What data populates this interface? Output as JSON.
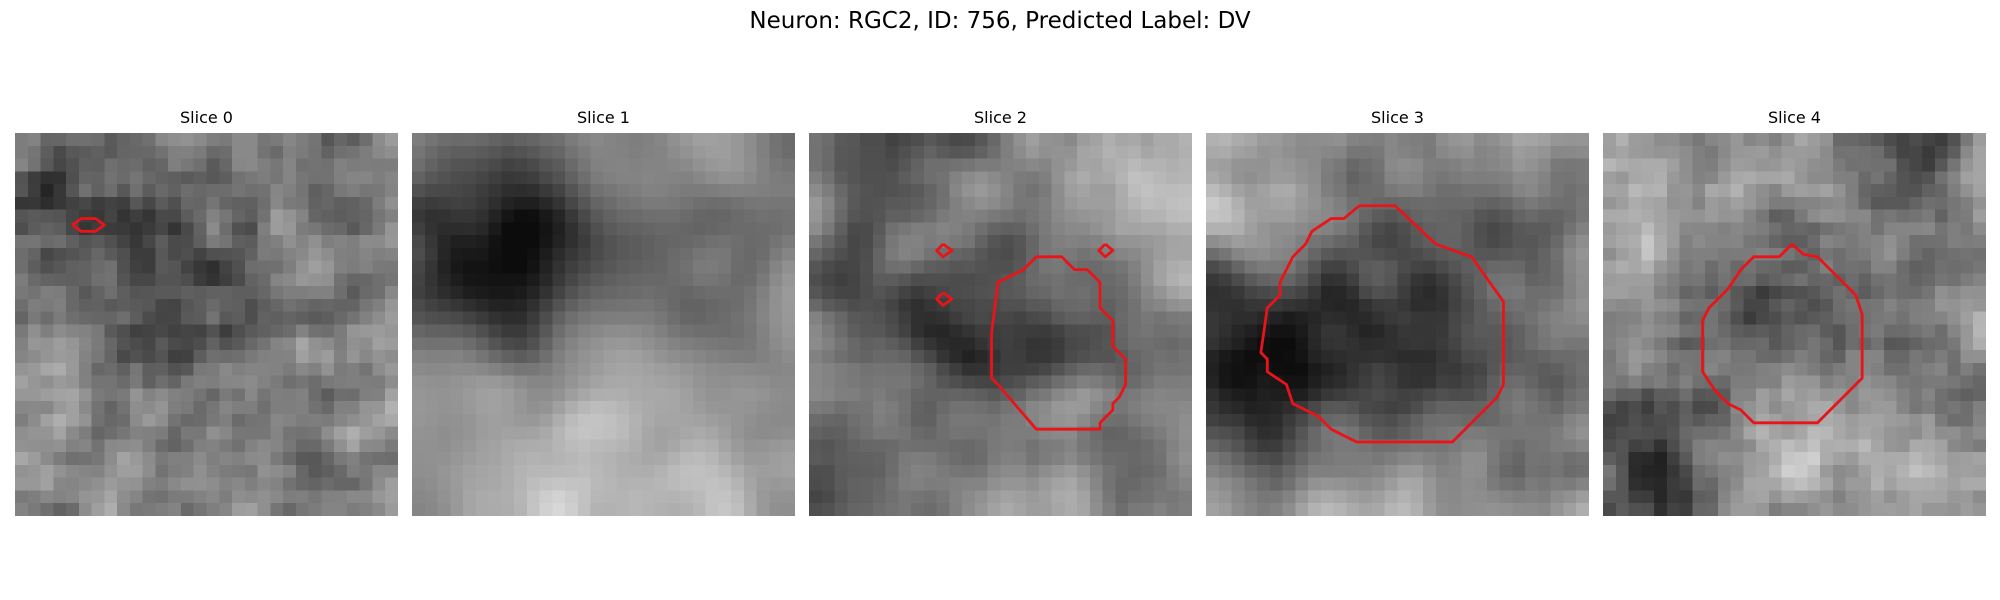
{
  "figure": {
    "suptitle": "Neuron: RGC2, ID: 756, Predicted Label: DV",
    "contour_color": "#e8141a"
  },
  "panels": [
    {
      "title": "Slice 0",
      "seed": 11,
      "base": 150,
      "noise": 95,
      "smooth": 1,
      "blobs": [
        [
          12.5,
          12,
          7.5,
          -70
        ],
        [
          7,
          8,
          4,
          -25
        ],
        [
          2,
          5,
          4,
          -40
        ],
        [
          26,
          5,
          3,
          -35
        ],
        [
          20,
          27,
          8,
          -20
        ]
      ],
      "contours": [
        [
          [
            4.5,
            7.2
          ],
          [
            5.2,
            6.7
          ],
          [
            6.3,
            6.7
          ],
          [
            7.0,
            7.2
          ],
          [
            6.3,
            7.7
          ],
          [
            5.2,
            7.7
          ],
          [
            4.5,
            7.2
          ]
        ]
      ]
    },
    {
      "title": "Slice 1",
      "seed": 23,
      "base": 160,
      "noise": 55,
      "smooth": 3,
      "blobs": [
        [
          7.5,
          11,
          7,
          -120
        ],
        [
          8,
          6,
          5,
          -60
        ],
        [
          12,
          23,
          8,
          40
        ],
        [
          25,
          10,
          5,
          -40
        ],
        [
          27,
          24,
          6,
          -25
        ],
        [
          11,
          2,
          4,
          20
        ]
      ],
      "contours": []
    },
    {
      "title": "Slice 2",
      "seed": 37,
      "base": 165,
      "noise": 70,
      "smooth": 2,
      "blobs": [
        [
          15,
          14.5,
          8,
          -115
        ],
        [
          3,
          11.5,
          4,
          -70
        ],
        [
          8.5,
          0.5,
          4.5,
          -85
        ],
        [
          1.5,
          27,
          3.5,
          -70
        ],
        [
          25,
          26,
          4,
          -45
        ],
        [
          10,
          7,
          4,
          55
        ],
        [
          23,
          6,
          4,
          45
        ],
        [
          20,
          21,
          3,
          30
        ]
      ],
      "contours": [
        [
          [
            10.5,
            8.7
          ],
          [
            11.2,
            9.2
          ],
          [
            10.5,
            9.7
          ],
          [
            10.0,
            9.2
          ],
          [
            10.5,
            8.7
          ]
        ],
        [
          [
            10.5,
            12.5
          ],
          [
            11.2,
            13.0
          ],
          [
            10.5,
            13.5
          ],
          [
            10.0,
            13.0
          ],
          [
            10.5,
            12.5
          ]
        ],
        [
          [
            23.2,
            8.7
          ],
          [
            23.8,
            9.2
          ],
          [
            23.2,
            9.7
          ],
          [
            22.7,
            9.2
          ],
          [
            23.2,
            8.7
          ]
        ],
        [
          [
            17.8,
            9.7
          ],
          [
            19.8,
            9.7
          ],
          [
            20.8,
            10.7
          ],
          [
            21.8,
            10.7
          ],
          [
            22.8,
            11.7
          ],
          [
            22.8,
            13.7
          ],
          [
            23.8,
            14.7
          ],
          [
            23.8,
            16.7
          ],
          [
            24.8,
            17.7
          ],
          [
            24.8,
            19.7
          ],
          [
            24.3,
            20.7
          ],
          [
            23.8,
            21.2
          ],
          [
            23.8,
            21.7
          ],
          [
            22.8,
            22.7
          ],
          [
            22.8,
            23.2
          ],
          [
            17.8,
            23.2
          ],
          [
            14.8,
            19.7
          ],
          [
            14.3,
            19.2
          ],
          [
            14.3,
            15.7
          ],
          [
            14.8,
            11.7
          ],
          [
            16.8,
            10.7
          ],
          [
            17.8,
            9.7
          ]
        ]
      ]
    },
    {
      "title": "Slice 3",
      "seed": 51,
      "base": 170,
      "noise": 65,
      "smooth": 2,
      "blobs": [
        [
          14,
          15.5,
          9.5,
          -115
        ],
        [
          1.5,
          19,
          6,
          -100
        ],
        [
          4,
          7.5,
          4.5,
          55
        ],
        [
          29,
          23,
          6,
          -40
        ],
        [
          26,
          5,
          4,
          -35
        ],
        [
          15,
          28,
          6,
          25
        ]
      ],
      "contours": [
        [
          [
            12,
            5.7
          ],
          [
            14.8,
            5.7
          ],
          [
            18,
            8.7
          ],
          [
            20.8,
            9.7
          ],
          [
            23.3,
            13.2
          ],
          [
            23.3,
            19.7
          ],
          [
            22.8,
            20.7
          ],
          [
            19.3,
            24.2
          ],
          [
            11.8,
            24.2
          ],
          [
            9.8,
            23.2
          ],
          [
            8.8,
            22.2
          ],
          [
            6.8,
            21.2
          ],
          [
            6.3,
            19.7
          ],
          [
            4.8,
            18.7
          ],
          [
            4.8,
            17.7
          ],
          [
            4.3,
            17.2
          ],
          [
            4.8,
            13.7
          ],
          [
            5.8,
            12.7
          ],
          [
            5.8,
            11.7
          ],
          [
            6.8,
            9.7
          ],
          [
            7.8,
            8.7
          ],
          [
            8.3,
            7.7
          ],
          [
            9.8,
            6.7
          ],
          [
            10.8,
            6.7
          ],
          [
            12,
            5.7
          ]
        ]
      ]
    },
    {
      "title": "Slice 4",
      "seed": 67,
      "base": 170,
      "noise": 80,
      "smooth": 1,
      "blobs": [
        [
          14.5,
          13.5,
          6.5,
          -80
        ],
        [
          4,
          25,
          5,
          -110
        ],
        [
          28.5,
          20,
          4,
          -55
        ],
        [
          24,
          1,
          3,
          -80
        ],
        [
          28,
          6,
          4,
          -40
        ],
        [
          15,
          22,
          5,
          25
        ]
      ],
      "contours": [
        [
          [
            14.8,
            8.7
          ],
          [
            15.7,
            9.5
          ],
          [
            16.8,
            9.7
          ],
          [
            18.8,
            11.7
          ],
          [
            19.8,
            12.7
          ],
          [
            20.3,
            14.2
          ],
          [
            20.3,
            19.2
          ],
          [
            18.8,
            20.7
          ],
          [
            16.8,
            22.7
          ],
          [
            11.8,
            22.7
          ],
          [
            10.8,
            21.7
          ],
          [
            9.8,
            21.2
          ],
          [
            8.8,
            20.2
          ],
          [
            7.8,
            18.7
          ],
          [
            7.8,
            14.7
          ],
          [
            8.3,
            13.7
          ],
          [
            8.8,
            13.2
          ],
          [
            9.8,
            12.2
          ],
          [
            10.8,
            10.7
          ],
          [
            11.8,
            9.7
          ],
          [
            13.8,
            9.7
          ],
          [
            14.8,
            8.7
          ]
        ]
      ]
    }
  ]
}
